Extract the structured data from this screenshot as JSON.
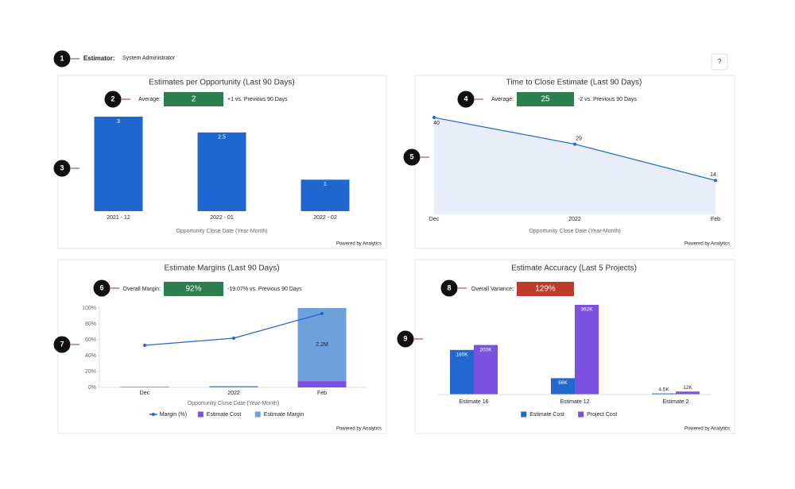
{
  "header": {
    "label": "Estimator:",
    "value": "System Administrator",
    "help": "?"
  },
  "callouts": [
    "1",
    "2",
    "3",
    "4",
    "5",
    "6",
    "7",
    "8",
    "9"
  ],
  "chart_data": [
    {
      "type": "bar",
      "title": "Estimates per Opportunity (Last 90 Days)",
      "kpi": {
        "label": "Average:",
        "value": "2",
        "delta": "+1 vs. Previous 90 Days",
        "color": "#2e7d4f"
      },
      "categories": [
        "2021 - 12",
        "2022 - 01",
        "2022 - 02"
      ],
      "values": [
        3,
        2.5,
        1
      ],
      "color": "#1f66d1",
      "ylim": [
        0,
        3
      ],
      "xlabel": "Opportunity Close Date (Year-Month)",
      "footer": "Powered by Analytics"
    },
    {
      "type": "area",
      "title": "Time to Close Estimate (Last 90 Days)",
      "kpi": {
        "label": "Average:",
        "value": "25",
        "delta": "-2 vs. Previous 90 Days",
        "color": "#2e7d4f"
      },
      "categories": [
        "Dec",
        "2022",
        "Feb"
      ],
      "values": [
        40,
        29,
        14
      ],
      "color": "#1f66d1",
      "fill": "#e7eef9",
      "ylim": [
        0,
        41
      ],
      "xlabel": "Opportunity Close Date (Year-Month)",
      "footer": "Powered by Analytics"
    },
    {
      "type": "combo",
      "title": "Estimate Margins (Last 90 Days)",
      "kpi": {
        "label": "Overall Margin:",
        "value": "92%",
        "delta": "-19.07% vs. Previous 90 Days",
        "color": "#2e7d4f"
      },
      "categories": [
        "Dec",
        "2022",
        "Feb"
      ],
      "series": [
        {
          "name": "Margin (%)",
          "type": "line",
          "color": "#1f66d1",
          "values": [
            53,
            62,
            93
          ]
        },
        {
          "name": "Estimate Cost",
          "type": "bar",
          "axis": "y2",
          "color": "#7b52e0",
          "values": [
            10000,
            20000,
            190000
          ]
        },
        {
          "name": "Estimate Margin",
          "type": "bar",
          "axis": "y2",
          "color": "#6fa0dc",
          "values": [
            10000,
            20000,
            2200000
          ],
          "value_labels": [
            null,
            null,
            "2.2M"
          ]
        }
      ],
      "ylim": [
        0,
        100
      ],
      "yticks": [
        {
          "value": 0,
          "label": "0%"
        },
        {
          "value": 20,
          "label": "20%"
        },
        {
          "value": 40,
          "label": "40%"
        },
        {
          "value": 60,
          "label": "60%"
        },
        {
          "value": 80,
          "label": "80%"
        },
        {
          "value": 100,
          "label": "100%"
        }
      ],
      "y2lim": [
        0,
        2390000
      ],
      "xlabel": "Opportunity Close Date (Year-Month)",
      "footer": "Powered by Analytics"
    },
    {
      "type": "bar",
      "title": "Estimate Accuracy (Last 5 Projects)",
      "kpi": {
        "label": "Overall Variance:",
        "value": "129%",
        "color": "#c0392b"
      },
      "categories": [
        "Estimate 16",
        "Estimate 12",
        "Estimate 2"
      ],
      "series": [
        {
          "name": "Estimate Cost",
          "color": "#2268cf",
          "values": [
            180000,
            66000,
            4500
          ],
          "value_labels": [
            "180K",
            "66K",
            "4.5K"
          ]
        },
        {
          "name": "Project Cost",
          "color": "#7b52e0",
          "values": [
            200000,
            362000,
            12000
          ],
          "value_labels": [
            "200K",
            "362K",
            "12K"
          ]
        }
      ],
      "ylim": [
        0,
        362000
      ],
      "footer": "Powered by Analytics"
    }
  ]
}
